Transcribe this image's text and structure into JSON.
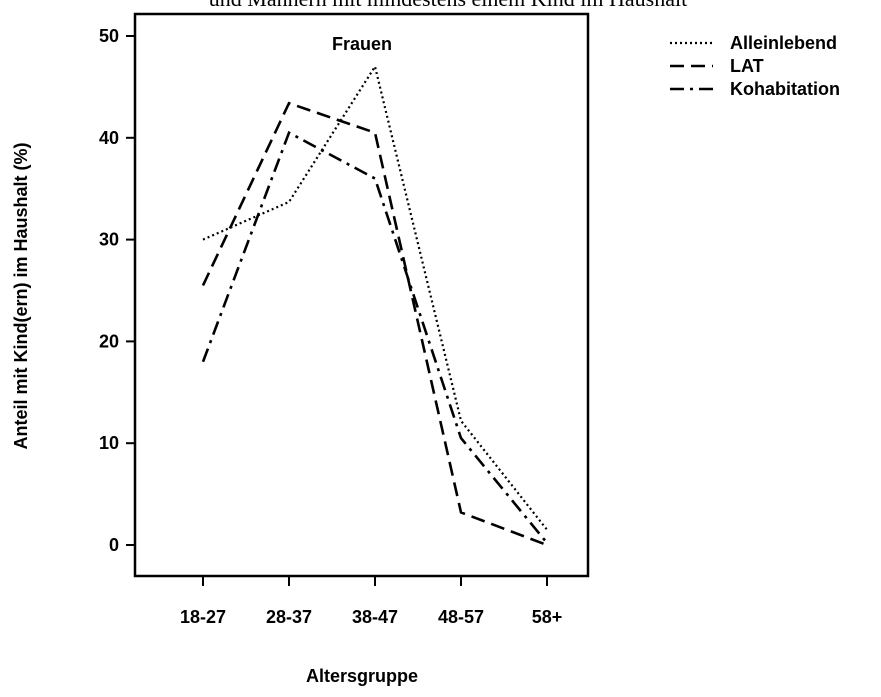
{
  "chart_data": {
    "type": "line",
    "title": "und Männern mit mindestens einem Kind im Haushalt",
    "panel_label": "Frauen",
    "xlabel": "Altersgruppe",
    "ylabel": "Anteil mit Kind(ern) im Haushalt  (%)",
    "categories": [
      "18-27",
      "28-37",
      "38-47",
      "48-57",
      "58+"
    ],
    "ylim": [
      -2.5,
      52.5
    ],
    "yticks": [
      "0",
      "10",
      "20",
      "30",
      "40",
      "50"
    ],
    "grid": false,
    "legend_position": "top-right, outside plot",
    "series": [
      {
        "name": "Alleinlebend",
        "style": "dotted",
        "values": [
          30,
          33.7,
          47,
          12.2,
          1.5
        ]
      },
      {
        "name": "LAT",
        "style": "dashed",
        "values": [
          25.5,
          43.4,
          40.5,
          3.2,
          0
        ]
      },
      {
        "name": "Kohabitation",
        "style": "dashdot",
        "values": [
          18,
          40.5,
          36,
          10.5,
          0.2
        ]
      }
    ],
    "colors": {
      "line": "#000000",
      "background": "#ffffff"
    }
  }
}
